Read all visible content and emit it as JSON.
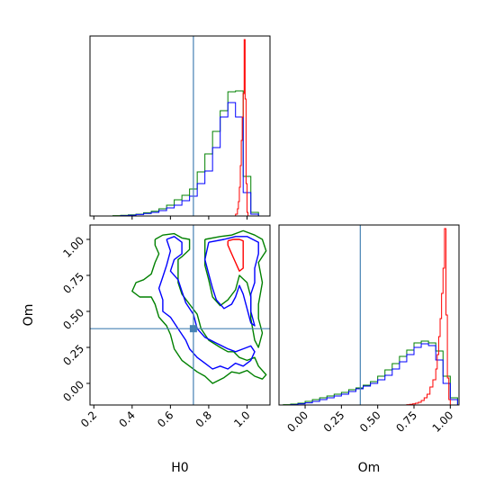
{
  "chart_data": [
    {
      "id": "hist_H0",
      "type": "histogram",
      "xlim": [
        0.18,
        1.12
      ],
      "ylim": [
        0,
        1.0
      ],
      "truth": 0.72,
      "ticks": [
        0.2,
        0.4,
        0.6,
        0.8,
        1.0
      ],
      "series": [
        {
          "color": "#008000",
          "edges": [
            0.3,
            0.34,
            0.38,
            0.42,
            0.46,
            0.5,
            0.54,
            0.58,
            0.62,
            0.66,
            0.7,
            0.74,
            0.78,
            0.82,
            0.86,
            0.9,
            0.94,
            0.98,
            1.02,
            1.06
          ],
          "values": [
            0.002,
            0.004,
            0.006,
            0.01,
            0.018,
            0.026,
            0.04,
            0.06,
            0.09,
            0.115,
            0.15,
            0.245,
            0.345,
            0.47,
            0.585,
            0.69,
            0.695,
            0.22,
            0.02
          ]
        },
        {
          "color": "#0000ff",
          "edges": [
            0.3,
            0.34,
            0.38,
            0.42,
            0.46,
            0.5,
            0.54,
            0.58,
            0.62,
            0.66,
            0.7,
            0.74,
            0.78,
            0.82,
            0.86,
            0.9,
            0.94,
            0.98,
            1.02,
            1.06
          ],
          "values": [
            0.0,
            0.002,
            0.004,
            0.008,
            0.014,
            0.02,
            0.03,
            0.045,
            0.06,
            0.085,
            0.11,
            0.18,
            0.25,
            0.38,
            0.55,
            0.63,
            0.55,
            0.13,
            0.01
          ]
        },
        {
          "color": "#ff0000",
          "edges": [
            0.94,
            0.95,
            0.955,
            0.96,
            0.965,
            0.97,
            0.975,
            0.98,
            0.985,
            0.99,
            0.995,
            1.0,
            1.005
          ],
          "values": [
            0.01,
            0.04,
            0.08,
            0.16,
            0.28,
            0.42,
            0.55,
            0.68,
            0.98,
            0.65,
            0.18,
            0.02
          ]
        }
      ]
    },
    {
      "id": "contour_H0_Om",
      "type": "contour",
      "xlim": [
        0.18,
        1.12
      ],
      "ylim": [
        -0.15,
        1.1
      ],
      "xticks": [
        0.2,
        0.4,
        0.6,
        0.8,
        1.0
      ],
      "yticks": [
        0.0,
        0.25,
        0.5,
        0.75,
        1.0
      ],
      "xlabel": "H0",
      "ylabel": "Om",
      "truth": {
        "x": 0.72,
        "y": 0.38
      },
      "contours": [
        {
          "color": "#008000",
          "points": [
            [
              0.52,
              1.0
            ],
            [
              0.56,
              1.03
            ],
            [
              0.62,
              1.04
            ],
            [
              0.66,
              1.01
            ],
            [
              0.7,
              1.0
            ],
            [
              0.7,
              0.93
            ],
            [
              0.66,
              0.88
            ],
            [
              0.64,
              0.86
            ],
            [
              0.64,
              0.7
            ],
            [
              0.66,
              0.62
            ],
            [
              0.7,
              0.55
            ],
            [
              0.74,
              0.48
            ],
            [
              0.76,
              0.38
            ],
            [
              0.8,
              0.3
            ],
            [
              0.86,
              0.25
            ],
            [
              0.9,
              0.22
            ],
            [
              0.93,
              0.22
            ],
            [
              0.96,
              0.18
            ],
            [
              1.0,
              0.16
            ],
            [
              1.04,
              0.18
            ],
            [
              1.06,
              0.12
            ],
            [
              1.1,
              0.06
            ],
            [
              1.08,
              0.03
            ],
            [
              1.04,
              0.05
            ],
            [
              1.0,
              0.09
            ],
            [
              0.96,
              0.07
            ],
            [
              0.92,
              0.08
            ],
            [
              0.88,
              0.04
            ],
            [
              0.82,
              0.0
            ],
            [
              0.78,
              0.05
            ],
            [
              0.74,
              0.08
            ],
            [
              0.7,
              0.12
            ],
            [
              0.66,
              0.16
            ],
            [
              0.62,
              0.24
            ],
            [
              0.6,
              0.34
            ],
            [
              0.58,
              0.4
            ],
            [
              0.54,
              0.46
            ],
            [
              0.52,
              0.55
            ],
            [
              0.5,
              0.6
            ],
            [
              0.44,
              0.6
            ],
            [
              0.4,
              0.64
            ],
            [
              0.42,
              0.7
            ],
            [
              0.46,
              0.72
            ],
            [
              0.5,
              0.76
            ],
            [
              0.52,
              0.84
            ],
            [
              0.54,
              0.9
            ],
            [
              0.52,
              0.96
            ],
            [
              0.52,
              1.0
            ]
          ]
        },
        {
          "color": "#008000",
          "points": [
            [
              0.78,
              1.0
            ],
            [
              0.86,
              1.02
            ],
            [
              0.92,
              1.03
            ],
            [
              0.98,
              1.06
            ],
            [
              1.04,
              1.03
            ],
            [
              1.08,
              1.0
            ],
            [
              1.1,
              0.92
            ],
            [
              1.06,
              0.84
            ],
            [
              1.08,
              0.7
            ],
            [
              1.06,
              0.55
            ],
            [
              1.06,
              0.45
            ],
            [
              1.08,
              0.35
            ],
            [
              1.06,
              0.25
            ],
            [
              1.04,
              0.3
            ],
            [
              1.02,
              0.45
            ],
            [
              1.02,
              0.6
            ],
            [
              1.0,
              0.7
            ],
            [
              0.96,
              0.75
            ],
            [
              0.94,
              0.65
            ],
            [
              0.9,
              0.58
            ],
            [
              0.86,
              0.54
            ],
            [
              0.82,
              0.6
            ],
            [
              0.8,
              0.72
            ],
            [
              0.78,
              0.82
            ],
            [
              0.78,
              0.92
            ],
            [
              0.78,
              1.0
            ]
          ]
        },
        {
          "color": "#0000ff",
          "points": [
            [
              0.58,
              1.0
            ],
            [
              0.62,
              1.02
            ],
            [
              0.66,
              0.98
            ],
            [
              0.66,
              0.9
            ],
            [
              0.62,
              0.86
            ],
            [
              0.6,
              0.78
            ],
            [
              0.64,
              0.72
            ],
            [
              0.66,
              0.64
            ],
            [
              0.68,
              0.56
            ],
            [
              0.72,
              0.48
            ],
            [
              0.74,
              0.38
            ],
            [
              0.78,
              0.32
            ],
            [
              0.84,
              0.28
            ],
            [
              0.9,
              0.24
            ],
            [
              0.94,
              0.22
            ],
            [
              0.98,
              0.24
            ],
            [
              1.02,
              0.26
            ],
            [
              1.04,
              0.22
            ],
            [
              1.02,
              0.16
            ],
            [
              0.98,
              0.12
            ],
            [
              0.94,
              0.14
            ],
            [
              0.9,
              0.1
            ],
            [
              0.86,
              0.12
            ],
            [
              0.82,
              0.1
            ],
            [
              0.78,
              0.14
            ],
            [
              0.74,
              0.18
            ],
            [
              0.7,
              0.24
            ],
            [
              0.68,
              0.3
            ],
            [
              0.64,
              0.38
            ],
            [
              0.6,
              0.46
            ],
            [
              0.56,
              0.5
            ],
            [
              0.56,
              0.58
            ],
            [
              0.54,
              0.66
            ],
            [
              0.56,
              0.74
            ],
            [
              0.58,
              0.82
            ],
            [
              0.6,
              0.92
            ],
            [
              0.58,
              1.0
            ]
          ]
        },
        {
          "color": "#0000ff",
          "points": [
            [
              0.8,
              0.98
            ],
            [
              0.88,
              1.0
            ],
            [
              0.94,
              1.02
            ],
            [
              1.0,
              1.02
            ],
            [
              1.06,
              0.98
            ],
            [
              1.06,
              0.9
            ],
            [
              1.04,
              0.8
            ],
            [
              1.04,
              0.7
            ],
            [
              1.02,
              0.62
            ],
            [
              1.02,
              0.5
            ],
            [
              1.04,
              0.4
            ],
            [
              1.02,
              0.42
            ],
            [
              1.0,
              0.52
            ],
            [
              0.98,
              0.62
            ],
            [
              0.96,
              0.68
            ],
            [
              0.94,
              0.6
            ],
            [
              0.92,
              0.55
            ],
            [
              0.88,
              0.52
            ],
            [
              0.84,
              0.58
            ],
            [
              0.82,
              0.66
            ],
            [
              0.8,
              0.76
            ],
            [
              0.78,
              0.86
            ],
            [
              0.8,
              0.98
            ]
          ]
        },
        {
          "color": "#ff0000",
          "points": [
            [
              0.9,
              0.99
            ],
            [
              0.93,
              1.0
            ],
            [
              0.96,
              1.0
            ],
            [
              0.98,
              0.99
            ],
            [
              0.98,
              0.9
            ],
            [
              0.98,
              0.8
            ],
            [
              0.96,
              0.78
            ],
            [
              0.94,
              0.84
            ],
            [
              0.92,
              0.9
            ],
            [
              0.9,
              0.96
            ],
            [
              0.9,
              0.99
            ]
          ]
        }
      ]
    },
    {
      "id": "hist_Om",
      "type": "histogram",
      "xlim": [
        -0.18,
        1.06
      ],
      "ylim": [
        0,
        1.0
      ],
      "truth": 0.38,
      "ticks": [
        0.0,
        0.25,
        0.5,
        0.75,
        1.0
      ],
      "xlabel": "Om",
      "series": [
        {
          "color": "#008000",
          "edges": [
            -0.15,
            -0.1,
            -0.05,
            0.0,
            0.05,
            0.1,
            0.15,
            0.2,
            0.25,
            0.3,
            0.35,
            0.4,
            0.45,
            0.5,
            0.55,
            0.6,
            0.65,
            0.7,
            0.75,
            0.8,
            0.85,
            0.9,
            0.95,
            1.0,
            1.05
          ],
          "values": [
            0.002,
            0.005,
            0.01,
            0.02,
            0.03,
            0.04,
            0.05,
            0.06,
            0.07,
            0.085,
            0.095,
            0.11,
            0.13,
            0.16,
            0.195,
            0.23,
            0.27,
            0.305,
            0.345,
            0.355,
            0.345,
            0.3,
            0.16,
            0.04
          ]
        },
        {
          "color": "#0000ff",
          "edges": [
            -0.15,
            -0.1,
            -0.05,
            0.0,
            0.05,
            0.1,
            0.15,
            0.2,
            0.25,
            0.3,
            0.35,
            0.4,
            0.45,
            0.5,
            0.55,
            0.6,
            0.65,
            0.7,
            0.75,
            0.8,
            0.85,
            0.9,
            0.95,
            1.0,
            1.05
          ],
          "values": [
            0.0,
            0.002,
            0.006,
            0.012,
            0.02,
            0.03,
            0.04,
            0.05,
            0.06,
            0.075,
            0.09,
            0.105,
            0.12,
            0.14,
            0.165,
            0.2,
            0.24,
            0.28,
            0.32,
            0.34,
            0.33,
            0.25,
            0.12,
            0.03
          ]
        },
        {
          "color": "#ff0000",
          "edges": [
            0.7,
            0.72,
            0.74,
            0.76,
            0.78,
            0.8,
            0.82,
            0.84,
            0.86,
            0.88,
            0.9,
            0.91,
            0.92,
            0.93,
            0.94,
            0.95,
            0.96,
            0.97,
            0.98,
            0.99,
            1.0
          ],
          "values": [
            0.002,
            0.004,
            0.006,
            0.01,
            0.015,
            0.025,
            0.04,
            0.06,
            0.1,
            0.14,
            0.2,
            0.28,
            0.38,
            0.48,
            0.62,
            0.76,
            0.98,
            0.5,
            0.15,
            0.03
          ]
        }
      ]
    }
  ]
}
